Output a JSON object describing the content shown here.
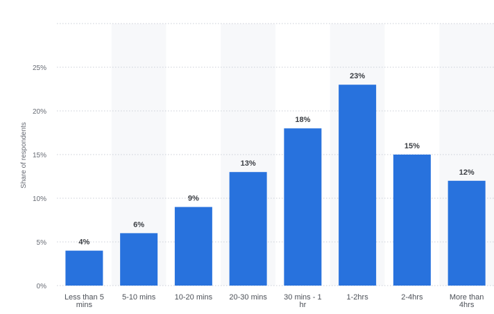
{
  "chart_data": {
    "type": "bar",
    "categories": [
      [
        "Less than 5",
        "mins"
      ],
      [
        "5-10 mins"
      ],
      [
        "10-20 mins"
      ],
      [
        "20-30 mins"
      ],
      [
        "30 mins - 1",
        "hr"
      ],
      [
        "1-2hrs"
      ],
      [
        "2-4hrs"
      ],
      [
        "More than",
        "4hrs"
      ]
    ],
    "series": [
      {
        "values": [
          4,
          6,
          9,
          13,
          18,
          23,
          15,
          12
        ]
      }
    ],
    "data_labels": [
      "4%",
      "6%",
      "9%",
      "13%",
      "18%",
      "23%",
      "15%",
      "12%"
    ],
    "xlabel": "",
    "ylabel": "Share of respondents",
    "ylim": [
      0,
      30
    ],
    "y_ticks": [
      0,
      5,
      10,
      15,
      20,
      25
    ],
    "y_tick_labels": [
      "0%",
      "5%",
      "10%",
      "15%",
      "20%",
      "25%"
    ],
    "grid": true,
    "legend": "none",
    "bar_color": "#2872dd"
  }
}
